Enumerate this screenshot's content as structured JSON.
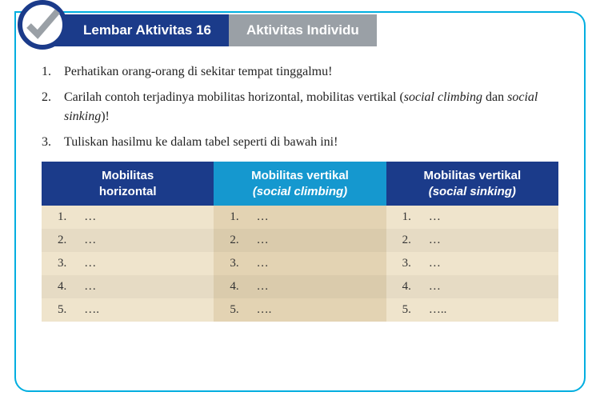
{
  "header": {
    "left_label": "Lembar Aktivitas 16",
    "right_label": "Aktivitas Individu"
  },
  "colors": {
    "border": "#00aee0",
    "header_left_bg": "#1b3b8a",
    "header_right_bg": "#9aa0a6",
    "header_text": "#ffffff",
    "check_stroke": "#9aa0a6",
    "th_blue_dark": "#1b3b8a",
    "th_blue_light": "#1598cf",
    "th_text": "#ffffff",
    "cell_cream": "#efe4cc",
    "cell_tan": "#e3d3b3",
    "row_alt_overlay": "rgba(0,0,0,0.04)"
  },
  "instructions": [
    {
      "text": "Perhatikan orang-orang di sekitar tempat tinggalmu!"
    },
    {
      "text": "Carilah contoh terjadinya mobilitas horizontal, mobilitas vertikal (",
      "italic1": "social climbing",
      "mid": " dan ",
      "italic2": "social sinking",
      "end": ")!"
    },
    {
      "text": "Tuliskan hasilmu ke dalam tabel seperti di bawah ini!"
    }
  ],
  "table": {
    "columns": [
      {
        "line1": "Mobilitas",
        "line2": "horizontal",
        "bg": "#1b3b8a"
      },
      {
        "line1": "Mobilitas vertikal",
        "line2_italic": "(social climbing)",
        "bg": "#1598cf"
      },
      {
        "line1": "Mobilitas vertikal",
        "line2_italic": "(social sinking)",
        "bg": "#1b3b8a"
      }
    ],
    "col_body_bg": [
      "#efe4cc",
      "#e3d3b3",
      "#efe4cc"
    ],
    "rows": [
      [
        "…",
        "…",
        "…"
      ],
      [
        "…",
        "…",
        "…"
      ],
      [
        "…",
        "…",
        "…"
      ],
      [
        "…",
        "…",
        "…"
      ],
      [
        "….",
        "….",
        "….."
      ]
    ]
  }
}
